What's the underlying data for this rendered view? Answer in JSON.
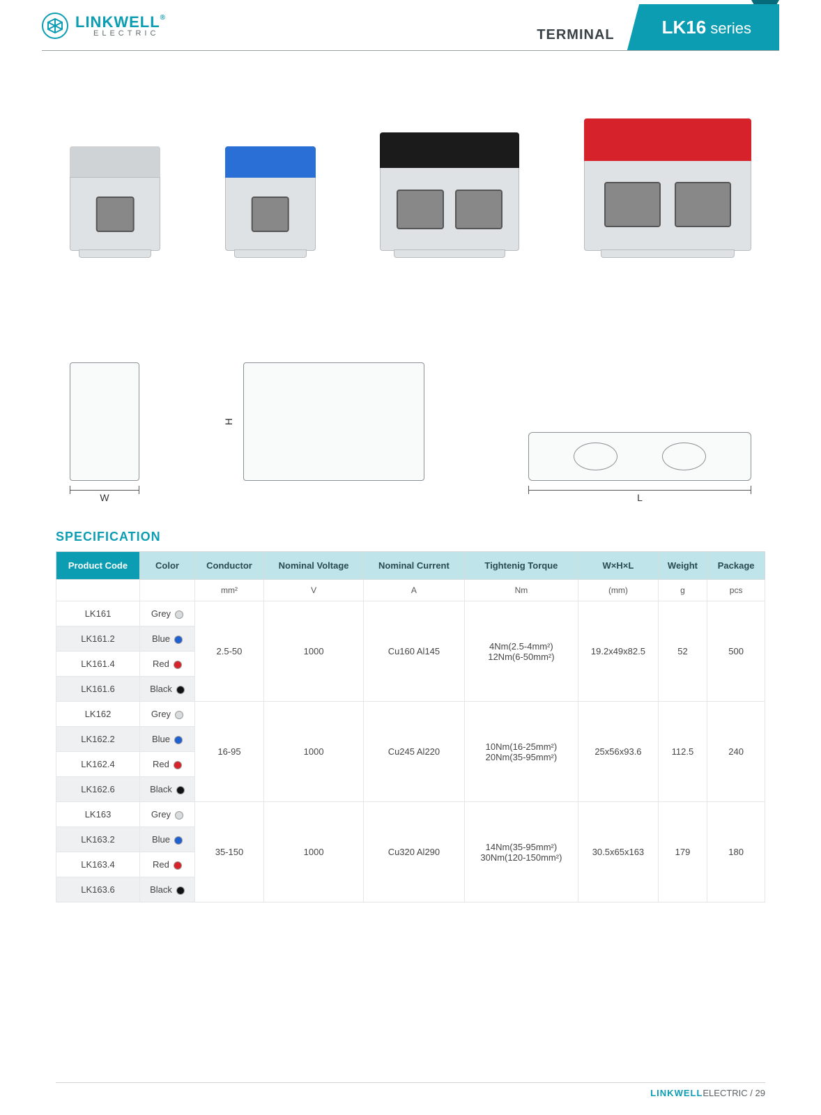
{
  "brand": {
    "name": "LINKWELL",
    "sub": "ELECTRIC",
    "reg": "®"
  },
  "header": {
    "category": "TERMINAL",
    "series_strong": "LK16",
    "series_rest": " series"
  },
  "drawings": {
    "w": "W",
    "h": "H",
    "l": "L"
  },
  "spec": {
    "title": "SPECIFICATION",
    "columns": [
      "Product Code",
      "Color",
      "Conductor",
      "Nominal Voltage",
      "Nominal Current",
      "Tightenig Torque",
      "W×H×L",
      "Weight",
      "Package"
    ],
    "units": [
      "",
      "",
      "mm²",
      "V",
      "A",
      "Nm",
      "(mm)",
      "g",
      "pcs"
    ],
    "groups": [
      {
        "rows": [
          {
            "code": "LK161",
            "color": "Grey",
            "swatch": "grey"
          },
          {
            "code": "LK161.2",
            "color": "Blue",
            "swatch": "blue"
          },
          {
            "code": "LK161.4",
            "color": "Red",
            "swatch": "red"
          },
          {
            "code": "LK161.6",
            "color": "Black",
            "swatch": "black"
          }
        ],
        "conductor": "2.5-50",
        "voltage": "1000",
        "current": "Cu160 Al145",
        "torque": "4Nm(2.5-4mm²)\n12Nm(6-50mm²)",
        "whl": "19.2x49x82.5",
        "weight": "52",
        "package": "500"
      },
      {
        "rows": [
          {
            "code": "LK162",
            "color": "Grey",
            "swatch": "grey"
          },
          {
            "code": "LK162.2",
            "color": "Blue",
            "swatch": "blue"
          },
          {
            "code": "LK162.4",
            "color": "Red",
            "swatch": "red"
          },
          {
            "code": "LK162.6",
            "color": "Black",
            "swatch": "black"
          }
        ],
        "conductor": "16-95",
        "voltage": "1000",
        "current": "Cu245 Al220",
        "torque": "10Nm(16-25mm²)\n20Nm(35-95mm²)",
        "whl": "25x56x93.6",
        "weight": "112.5",
        "package": "240"
      },
      {
        "rows": [
          {
            "code": "LK163",
            "color": "Grey",
            "swatch": "grey"
          },
          {
            "code": "LK163.2",
            "color": "Blue",
            "swatch": "blue"
          },
          {
            "code": "LK163.4",
            "color": "Red",
            "swatch": "red"
          },
          {
            "code": "LK163.6",
            "color": "Black",
            "swatch": "black"
          }
        ],
        "conductor": "35-150",
        "voltage": "1000",
        "current": "Cu320 Al290",
        "torque": "14Nm(35-95mm²)\n30Nm(120-150mm²)",
        "whl": "30.5x65x163",
        "weight": "179",
        "package": "180"
      }
    ]
  },
  "footer": {
    "brand": "LINKWELL",
    "sub": "ELECTRIC",
    "sep": " / ",
    "page": "29"
  },
  "colors": {
    "accent": "#0c9db3",
    "grey": "#d9dcde",
    "blue": "#1f5fd0",
    "red": "#d6222a",
    "black": "#111111"
  }
}
